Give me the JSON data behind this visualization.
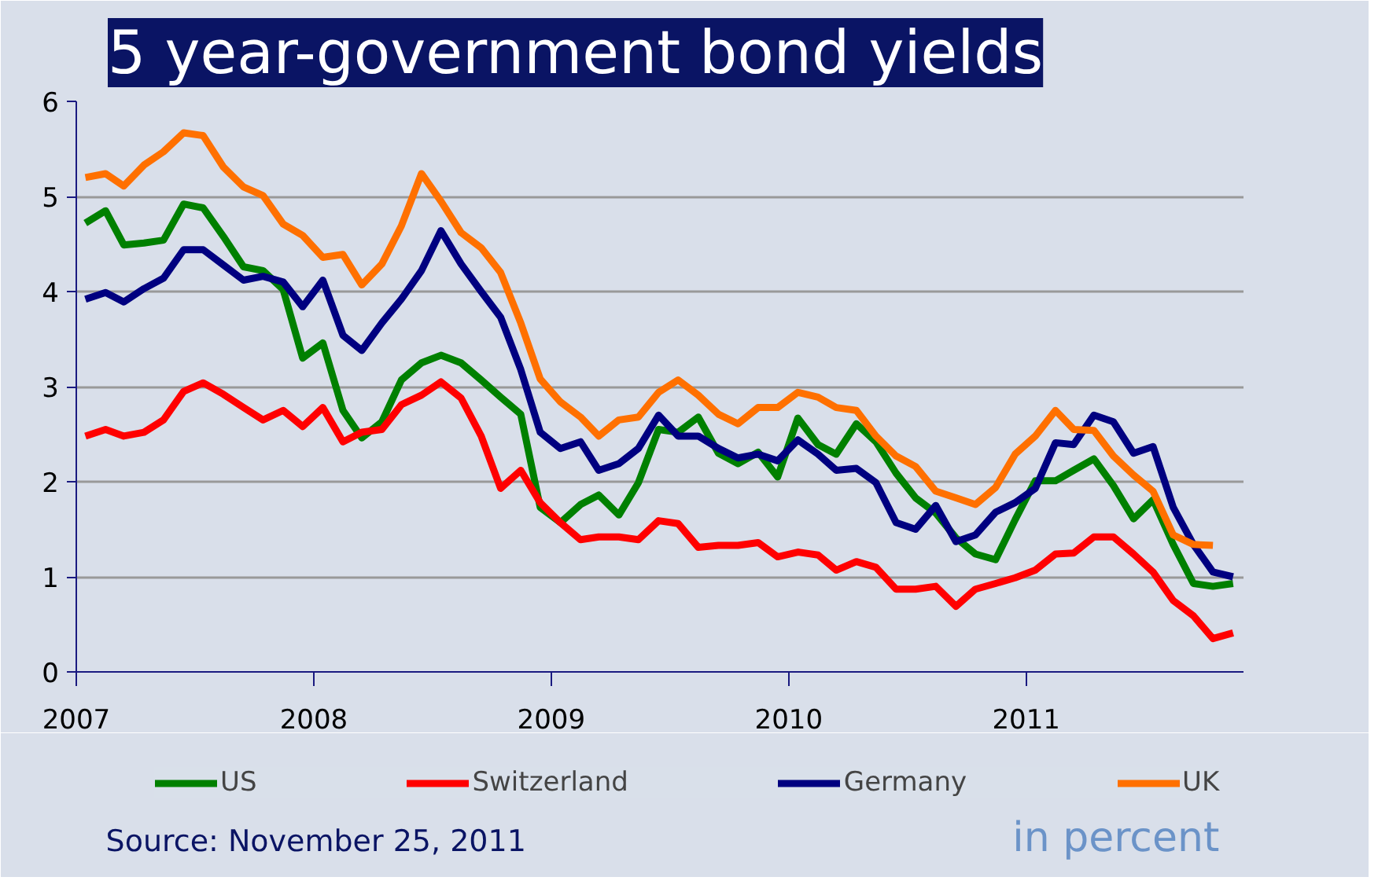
{
  "chart_data": {
    "type": "line",
    "title": "5 year-government bond yields",
    "x": [
      "2007-01-15",
      "2007-02-15",
      "2007-03-15",
      "2007-04-15",
      "2007-05-15",
      "2007-06-15",
      "2007-07-15",
      "2007-08-15",
      "2007-09-15",
      "2007-10-15",
      "2007-11-15",
      "2007-12-15",
      "2008-01-15",
      "2008-02-15",
      "2008-03-15",
      "2008-04-15",
      "2008-05-15",
      "2008-06-15",
      "2008-07-15",
      "2008-08-15",
      "2008-09-15",
      "2008-10-15",
      "2008-11-15",
      "2008-12-15",
      "2009-01-15",
      "2009-02-15",
      "2009-03-15",
      "2009-04-15",
      "2009-05-15",
      "2009-06-15",
      "2009-07-15",
      "2009-08-15",
      "2009-09-15",
      "2009-10-15",
      "2009-11-15",
      "2009-12-15",
      "2010-01-15",
      "2010-02-15",
      "2010-03-15",
      "2010-04-15",
      "2010-05-15",
      "2010-06-15",
      "2010-07-15",
      "2010-08-15",
      "2010-09-15",
      "2010-10-15",
      "2010-11-15",
      "2010-12-15",
      "2011-01-15",
      "2011-02-15",
      "2011-03-15",
      "2011-04-15",
      "2011-05-15",
      "2011-06-15",
      "2011-07-15",
      "2011-08-15",
      "2011-09-15",
      "2011-10-15",
      "2011-11-15"
    ],
    "series": [
      {
        "name": "US",
        "color": "#008000",
        "values": [
          4.72,
          4.85,
          4.49,
          4.51,
          4.54,
          4.92,
          4.88,
          4.58,
          4.26,
          4.22,
          4.02,
          3.3,
          3.46,
          2.75,
          2.46,
          2.63,
          3.07,
          3.25,
          3.33,
          3.25,
          3.07,
          2.89,
          2.71,
          1.73,
          1.57,
          1.76,
          1.86,
          1.65,
          1.99,
          2.55,
          2.52,
          2.68,
          2.3,
          2.19,
          2.31,
          2.05,
          2.67,
          2.39,
          2.29,
          2.61,
          2.42,
          2.09,
          1.83,
          1.67,
          1.41,
          1.24,
          1.18,
          1.6,
          2.01,
          2.01,
          2.12,
          2.24,
          1.96,
          1.61,
          1.81,
          1.34,
          0.93,
          0.9,
          0.93
        ]
      },
      {
        "name": "Switzerland",
        "color": "#ff0000",
        "values": [
          2.48,
          2.55,
          2.48,
          2.52,
          2.65,
          2.95,
          3.04,
          2.92,
          2.78,
          2.65,
          2.75,
          2.58,
          2.78,
          2.42,
          2.52,
          2.55,
          2.81,
          2.91,
          3.05,
          2.88,
          2.48,
          1.93,
          2.12,
          1.78,
          1.57,
          1.39,
          1.42,
          1.42,
          1.39,
          1.59,
          1.56,
          1.31,
          1.33,
          1.33,
          1.36,
          1.21,
          1.26,
          1.23,
          1.07,
          1.16,
          1.1,
          0.87,
          0.87,
          0.9,
          0.69,
          0.87,
          0.93,
          0.99,
          1.07,
          1.24,
          1.25,
          1.42,
          1.42,
          1.24,
          1.05,
          0.75,
          0.59,
          0.35,
          0.41
        ]
      },
      {
        "name": "Germany",
        "color": "#000080",
        "values": [
          3.92,
          3.99,
          3.89,
          4.03,
          4.14,
          4.44,
          4.44,
          4.28,
          4.12,
          4.16,
          4.1,
          3.84,
          4.12,
          3.54,
          3.38,
          3.67,
          3.92,
          4.22,
          4.64,
          4.29,
          4.0,
          3.73,
          3.18,
          2.52,
          2.35,
          2.42,
          2.12,
          2.19,
          2.35,
          2.7,
          2.48,
          2.48,
          2.35,
          2.25,
          2.29,
          2.22,
          2.44,
          2.29,
          2.12,
          2.14,
          1.99,
          1.57,
          1.5,
          1.75,
          1.37,
          1.44,
          1.68,
          1.78,
          1.93,
          2.41,
          2.39,
          2.7,
          2.63,
          2.3,
          2.37,
          1.73,
          1.34,
          1.05,
          1.0
        ]
      },
      {
        "name": "UK",
        "color": "#ff7000",
        "values": [
          5.2,
          5.24,
          5.11,
          5.33,
          5.47,
          5.67,
          5.64,
          5.31,
          5.1,
          5.01,
          4.71,
          4.59,
          4.36,
          4.39,
          4.07,
          4.29,
          4.69,
          5.24,
          4.95,
          4.62,
          4.46,
          4.2,
          3.67,
          3.08,
          2.84,
          2.68,
          2.48,
          2.65,
          2.68,
          2.94,
          3.07,
          2.91,
          2.71,
          2.61,
          2.78,
          2.78,
          2.94,
          2.89,
          2.78,
          2.75,
          2.48,
          2.27,
          2.16,
          1.9,
          1.83,
          1.76,
          1.94,
          2.29,
          2.48,
          2.75,
          2.55,
          2.54,
          2.27,
          2.07,
          1.9,
          1.44,
          1.34,
          1.33,
          null
        ]
      }
    ],
    "xlim": [
      "2007",
      "2011-12-01"
    ],
    "xticks": [
      {
        "value": "2007",
        "label": "2007"
      },
      {
        "value": "2008",
        "label": "2008"
      },
      {
        "value": "2009",
        "label": "2009"
      },
      {
        "value": "2010",
        "label": "2010"
      },
      {
        "value": "2011",
        "label": "2011"
      }
    ],
    "ylim": [
      0,
      6
    ],
    "yticks": [
      0,
      1,
      2,
      3,
      4,
      5,
      6
    ],
    "grid": "y",
    "legend": "bottom",
    "marker": "none",
    "line_style": "solid",
    "annotations": [
      "Source: November 25, 2011",
      "in percent"
    ]
  }
}
